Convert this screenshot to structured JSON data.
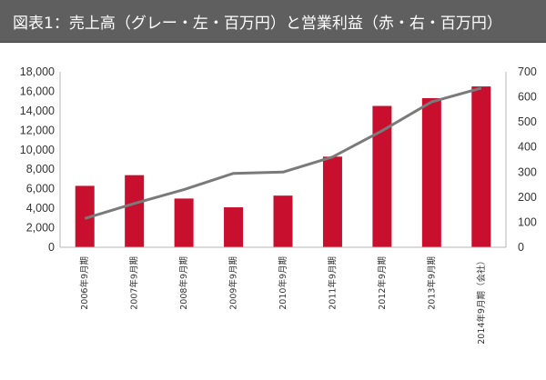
{
  "title": "図表1：売上高（グレー・左・百万円）と営業利益（赤・右・百万円）",
  "colors": {
    "title_bg": "#5f5f5f",
    "bar": "#c8102e",
    "line": "#7a7a7a",
    "axis": "#b5b5b5"
  },
  "chart_data": {
    "type": "bar",
    "title": "図表1：売上高（グレー・左・百万円）と営業利益（赤・右・百万円）",
    "categories": [
      "2006年9月期",
      "2007年9月期",
      "2008年9月期",
      "2009年9月期",
      "2010年9月期",
      "2011年9月期",
      "2012年9月期",
      "2013年9月期",
      "2014年9月期（会社）"
    ],
    "bar_series": {
      "axis": "left",
      "values": [
        6300,
        7400,
        5000,
        4100,
        5300,
        9300,
        14500,
        15300,
        16500
      ]
    },
    "line_series": {
      "axis": "right",
      "values": [
        115,
        175,
        230,
        295,
        300,
        360,
        465,
        580,
        635
      ]
    },
    "y_left": {
      "min": 0,
      "max": 18000,
      "ticks": [
        "0",
        "2,000",
        "4,000",
        "6,000",
        "8,000",
        "10,000",
        "12,000",
        "14,000",
        "16,000",
        "18,000"
      ]
    },
    "y_right": {
      "min": 0,
      "max": 700,
      "ticks": [
        "0",
        "100",
        "200",
        "300",
        "400",
        "500",
        "600",
        "700"
      ]
    },
    "grid": false,
    "legend": "none"
  }
}
